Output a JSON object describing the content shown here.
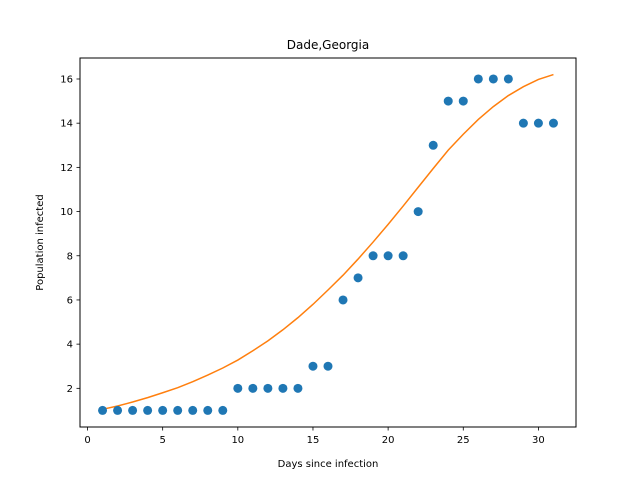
{
  "chart_data": {
    "type": "scatter",
    "title": "Dade,Georgia",
    "xlabel": "Days since infection",
    "ylabel": "Population infected",
    "xlim": [
      -0.5,
      32.5
    ],
    "ylim": [
      0.25,
      16.95
    ],
    "xticks": [
      0,
      5,
      10,
      15,
      20,
      25,
      30
    ],
    "yticks": [
      2,
      4,
      6,
      8,
      10,
      12,
      14,
      16
    ],
    "grid": false,
    "series": [
      {
        "kind": "scatter",
        "color": "#1f77b4",
        "x": [
          1,
          2,
          3,
          4,
          5,
          6,
          7,
          8,
          9,
          10,
          11,
          12,
          13,
          14,
          15,
          16,
          17,
          18,
          19,
          20,
          21,
          22,
          23,
          24,
          25,
          26,
          27,
          28,
          29,
          30,
          31
        ],
        "y": [
          1,
          1,
          1,
          1,
          1,
          1,
          1,
          1,
          1,
          2,
          2,
          2,
          2,
          2,
          3,
          3,
          6,
          7,
          8,
          8,
          8,
          10,
          13,
          15,
          15,
          16,
          16,
          16,
          14,
          14,
          14
        ]
      },
      {
        "kind": "line",
        "color": "#ff7f0e",
        "x": [
          1,
          2,
          3,
          4,
          5,
          6,
          7,
          8,
          9,
          10,
          11,
          12,
          13,
          14,
          15,
          16,
          17,
          18,
          19,
          20,
          21,
          22,
          23,
          24,
          25,
          26,
          27,
          28,
          29,
          30,
          31
        ],
        "y": [
          1.05,
          1.2,
          1.38,
          1.58,
          1.8,
          2.03,
          2.3,
          2.6,
          2.92,
          3.28,
          3.7,
          4.15,
          4.65,
          5.2,
          5.8,
          6.45,
          7.12,
          7.85,
          8.62,
          9.42,
          10.25,
          11.1,
          11.95,
          12.78,
          13.5,
          14.17,
          14.75,
          15.25,
          15.65,
          15.98,
          16.2
        ]
      }
    ]
  }
}
